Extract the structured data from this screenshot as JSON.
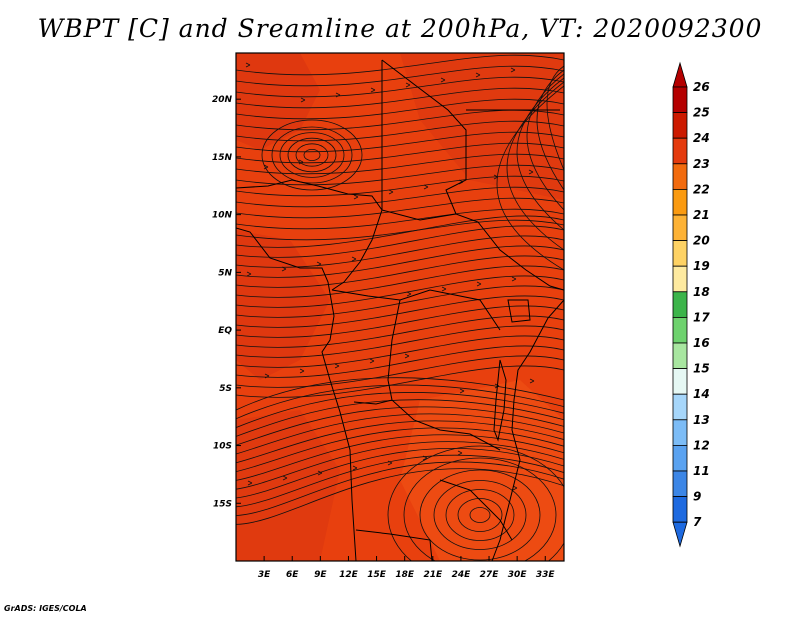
{
  "title": "WBPT [C] and Sreamline at 200hPa, VT: 2020092300",
  "credit": "GrADS: IGES/COLA",
  "map": {
    "lon_range": [
      0,
      35
    ],
    "lat_range": [
      -20,
      24
    ],
    "x_ticks": [
      "3E",
      "6E",
      "9E",
      "12E",
      "15E",
      "18E",
      "21E",
      "24E",
      "27E",
      "30E",
      "33E"
    ],
    "y_ticks": [
      "20N",
      "15N",
      "10N",
      "5N",
      "EQ",
      "5S",
      "10S",
      "15S"
    ],
    "fill_color": "#e8400e"
  },
  "colorbar": {
    "levels": [
      "26",
      "25",
      "24",
      "23",
      "22",
      "21",
      "20",
      "19",
      "18",
      "17",
      "16",
      "15",
      "14",
      "13",
      "12",
      "11",
      "9",
      "7"
    ],
    "colors": [
      "#b40000",
      "#cc1a00",
      "#e43b0e",
      "#f26b0e",
      "#fa9a10",
      "#fdb235",
      "#fed264",
      "#feeaa0",
      "#3cb44a",
      "#6ed26e",
      "#a8e6a0",
      "#e6f8f4",
      "#a6d6fa",
      "#7cbcf6",
      "#5aa2f0",
      "#3c86e6",
      "#1e6ae0"
    ]
  }
}
